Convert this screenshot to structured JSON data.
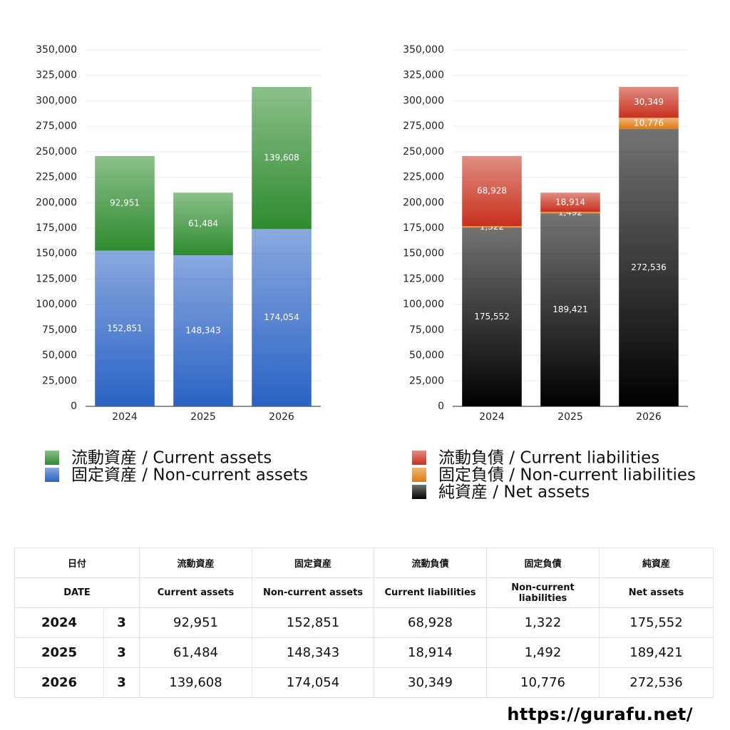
{
  "chart_data": [
    {
      "type": "stacked-bar",
      "categories": [
        "2024",
        "2025",
        "2026"
      ],
      "series": [
        {
          "name": "流動資産 / Current assets",
          "color": "#2e8b2e",
          "values": [
            92951,
            61484,
            139608
          ],
          "value_labels": [
            "92,951",
            "61,484",
            "139,608"
          ]
        },
        {
          "name": "固定資産 / Non-current assets",
          "color": "#2a62c4",
          "values": [
            152851,
            148343,
            174054
          ],
          "value_labels": [
            "152,851",
            "148,343",
            "174,054"
          ]
        }
      ],
      "ylim": [
        0,
        350000
      ],
      "yticks": [
        0,
        {
          "value": 25000,
          "label": "25,000"
        },
        {
          "value": 50000,
          "label": "50,000"
        },
        {
          "value": 75000,
          "label": "75,000"
        },
        {
          "value": 100000,
          "label": "100,000"
        },
        {
          "value": 125000,
          "label": "125,000"
        },
        {
          "value": 150000,
          "label": "150,000"
        },
        {
          "value": 175000,
          "label": "175,000"
        },
        {
          "value": 200000,
          "label": "200,000"
        },
        {
          "value": 225000,
          "label": "225,000"
        },
        {
          "value": 250000,
          "label": "250,000"
        },
        {
          "value": 275000,
          "label": "275,000"
        },
        {
          "value": 300000,
          "label": "300,000"
        },
        {
          "value": 325000,
          "label": "325,000"
        },
        {
          "value": 350000,
          "label": "350,000"
        }
      ],
      "grid": true
    },
    {
      "type": "stacked-bar",
      "categories": [
        "2024",
        "2025",
        "2026"
      ],
      "series": [
        {
          "name": "流動負債 / Current liabilities",
          "color": "#c8301e",
          "values": [
            68928,
            18914,
            30349
          ],
          "value_labels": [
            "68,928",
            "18,914",
            "30,349"
          ]
        },
        {
          "name": "固定負債 / Non-current liabilities",
          "color": "#e07a10",
          "values": [
            1322,
            1492,
            10776
          ],
          "value_labels": [
            "1,322",
            "1,492",
            "10,776"
          ]
        },
        {
          "name": "純資産 / Net assets",
          "color": "#000000",
          "values": [
            175552,
            189421,
            272536
          ],
          "value_labels": [
            "175,552",
            "189,421",
            "272,536"
          ]
        }
      ],
      "ylim": [
        0,
        350000
      ],
      "yticks": [
        0,
        {
          "value": 25000,
          "label": "25,000"
        },
        {
          "value": 50000,
          "label": "50,000"
        },
        {
          "value": 75000,
          "label": "75,000"
        },
        {
          "value": 100000,
          "label": "100,000"
        },
        {
          "value": 125000,
          "label": "125,000"
        },
        {
          "value": 150000,
          "label": "150,000"
        },
        {
          "value": 175000,
          "label": "175,000"
        },
        {
          "value": 200000,
          "label": "200,000"
        },
        {
          "value": 225000,
          "label": "225,000"
        },
        {
          "value": 250000,
          "label": "250,000"
        },
        {
          "value": 275000,
          "label": "275,000"
        },
        {
          "value": 300000,
          "label": "300,000"
        },
        {
          "value": 325000,
          "label": "325,000"
        },
        {
          "value": 350000,
          "label": "350,000"
        }
      ],
      "grid": true
    }
  ],
  "table": {
    "header": [
      [
        "日付",
        "流動資産",
        "固定資産",
        "流動負債",
        "固定負債",
        "純資産"
      ],
      [
        "DATE",
        "Current assets",
        "Non-current assets",
        "Current liabilities",
        "Non-current liabilities",
        "Net assets"
      ]
    ],
    "rows": [
      [
        "2024",
        "3",
        "92,951",
        "152,851",
        "68,928",
        "1,322",
        "175,552"
      ],
      [
        "2025",
        "3",
        "61,484",
        "148,343",
        "18,914",
        "1,492",
        "189,421"
      ],
      [
        "2026",
        "3",
        "139,608",
        "174,054",
        "30,349",
        "10,776",
        "272,536"
      ]
    ]
  },
  "footer": {
    "url": "https://gurafu.net/"
  }
}
